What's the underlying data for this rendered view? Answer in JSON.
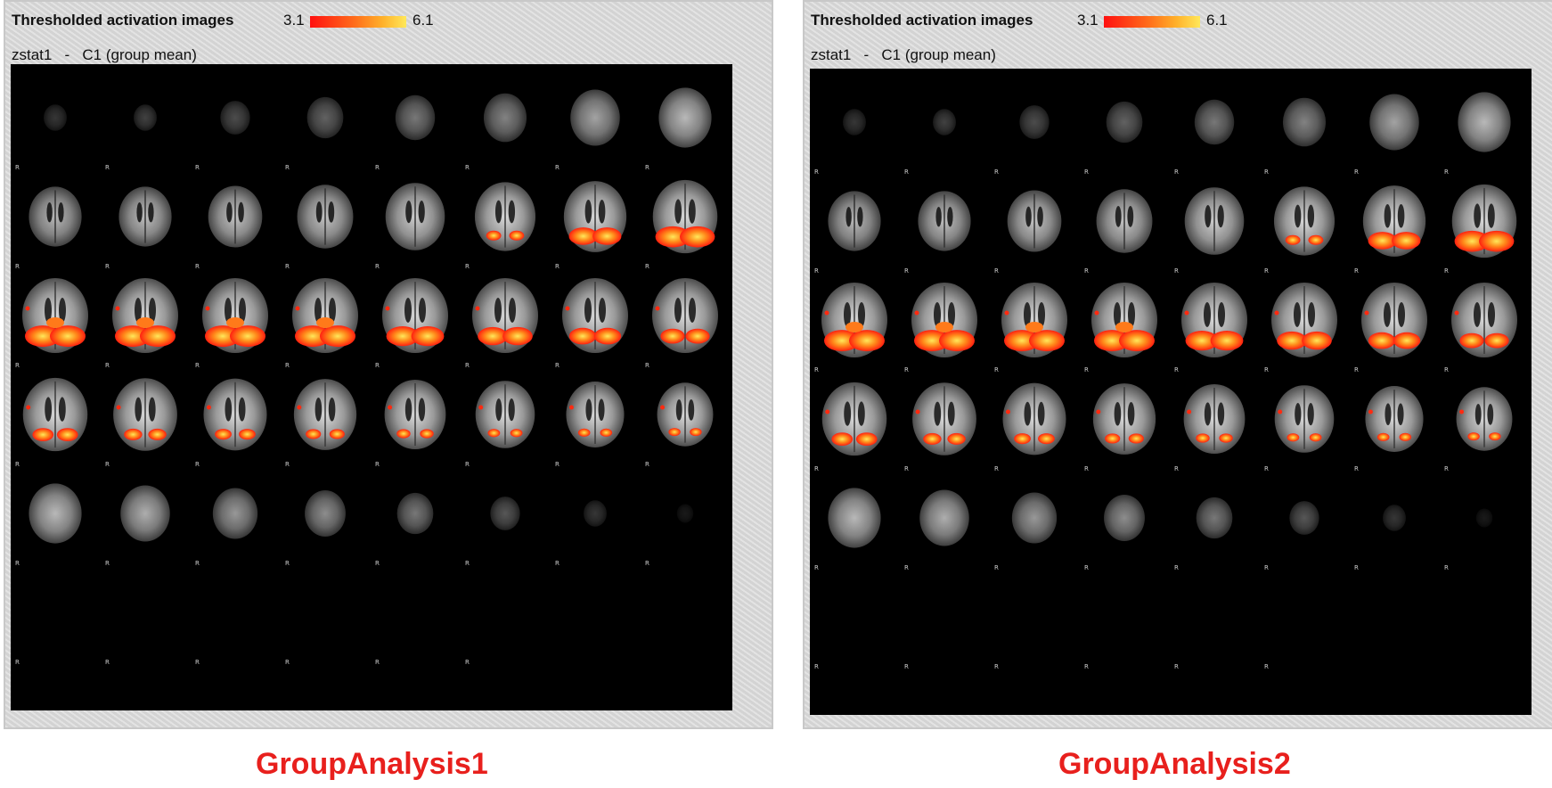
{
  "panels": [
    {
      "title": "Thresholded activation images",
      "scale_min": "3.1",
      "scale_max": "6.1",
      "stat": "zstat1",
      "separator": "-",
      "contrast": "C1 (group mean)",
      "orientation_marker": "R",
      "caption": "GroupAnalysis1"
    },
    {
      "title": "Thresholded activation images",
      "scale_min": "3.1",
      "scale_max": "6.1",
      "stat": "zstat1",
      "separator": "-",
      "contrast": "C1 (group mean)",
      "orientation_marker": "R",
      "caption": "GroupAnalysis2"
    }
  ],
  "colors": {
    "caption": "#e8201d",
    "colorbar_low": "#ff1010",
    "colorbar_high": "#ffe85a",
    "background": "#000000"
  },
  "grid": {
    "rows": 5,
    "cols": 8,
    "extra_marker_row": 6
  }
}
